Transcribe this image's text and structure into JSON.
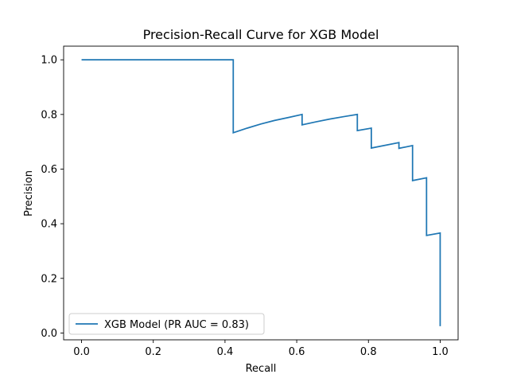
{
  "chart_data": {
    "type": "line",
    "title": "Precision-Recall Curve for XGB Model",
    "xlabel": "Recall",
    "ylabel": "Precision",
    "xlim": [
      -0.05,
      1.05
    ],
    "ylim": [
      -0.025,
      1.05
    ],
    "xticks": [
      0.0,
      0.2,
      0.4,
      0.6,
      0.8,
      1.0
    ],
    "xtick_labels": [
      "0.0",
      "0.2",
      "0.4",
      "0.6",
      "0.8",
      "1.0"
    ],
    "yticks": [
      0.0,
      0.2,
      0.4,
      0.6,
      0.8,
      1.0
    ],
    "ytick_labels": [
      "0.0",
      "0.2",
      "0.4",
      "0.6",
      "0.8",
      "1.0"
    ],
    "grid": false,
    "legend_position": "lower-left",
    "series": [
      {
        "name": "XGB Model (PR AUC = 0.83)",
        "color": "#1f77b4",
        "step": "post",
        "points": [
          [
            0.0,
            1.0
          ],
          [
            0.423,
            1.0
          ],
          [
            0.423,
            0.733
          ],
          [
            0.462,
            0.75
          ],
          [
            0.5,
            0.765
          ],
          [
            0.538,
            0.778
          ],
          [
            0.577,
            0.789
          ],
          [
            0.615,
            0.8
          ],
          [
            0.615,
            0.762
          ],
          [
            0.654,
            0.773
          ],
          [
            0.692,
            0.783
          ],
          [
            0.731,
            0.792
          ],
          [
            0.769,
            0.8
          ],
          [
            0.769,
            0.741
          ],
          [
            0.808,
            0.75
          ],
          [
            0.808,
            0.677
          ],
          [
            0.885,
            0.697
          ],
          [
            0.885,
            0.676
          ],
          [
            0.923,
            0.686
          ],
          [
            0.923,
            0.558
          ],
          [
            0.962,
            0.568
          ],
          [
            0.962,
            0.357
          ],
          [
            1.0,
            0.366
          ],
          [
            1.0,
            0.025
          ]
        ]
      }
    ]
  }
}
